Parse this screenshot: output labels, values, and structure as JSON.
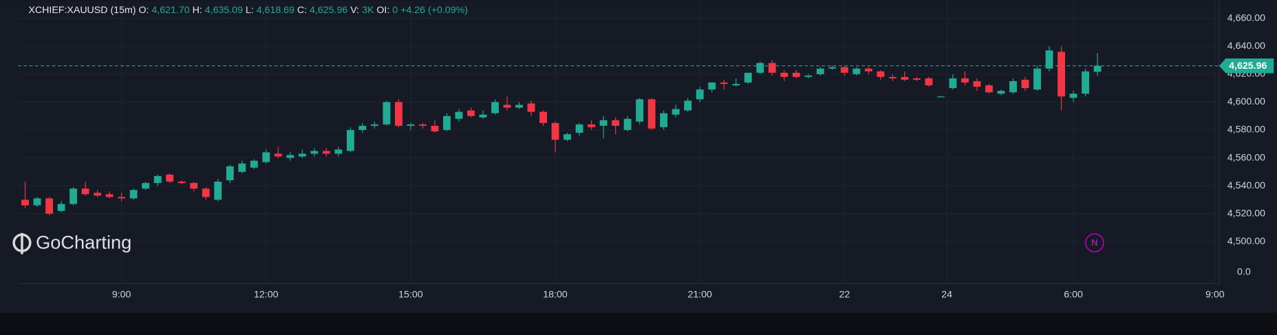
{
  "chart_data": {
    "type": "candlestick",
    "title": "XCHIEF:XAUUSD (15m)",
    "stats": [
      {
        "label": "O:",
        "value": "4,621.70"
      },
      {
        "label": "H:",
        "value": "4,635.09"
      },
      {
        "label": "L:",
        "value": "4,618.69"
      },
      {
        "label": "C:",
        "value": "4,625.96"
      },
      {
        "label": "V:",
        "value": "3K"
      },
      {
        "label": "OI:",
        "value": "0"
      }
    ],
    "change": "+4.26",
    "change_percent": "(+0.09%)",
    "up_color": "#22ab94",
    "down_color": "#f23645",
    "open": [
      4530,
      4526,
      4531,
      4522,
      4527,
      4538,
      4535,
      4534,
      4532,
      4531,
      4538,
      4542,
      4548,
      4543,
      4542,
      4538,
      4530,
      4544,
      4550,
      4553,
      4557,
      4563,
      4560,
      4561,
      4563,
      4565,
      4563,
      4565,
      4580,
      4583,
      4584,
      4600,
      4583,
      4584,
      4583,
      4580,
      4588,
      4594,
      4589,
      4592,
      4598,
      4596,
      4599,
      4593,
      4585,
      4573,
      4578,
      4584,
      4583,
      4587,
      4580,
      4586,
      4602,
      4582,
      4591,
      4594,
      4602,
      4609,
      4614,
      4612,
      4614,
      4621,
      4628,
      4621,
      4621,
      4618,
      4620,
      4624,
      4625,
      4620,
      4624,
      4622,
      4618,
      4618,
      4617,
      4617,
      4604,
      4610,
      4617,
      4615,
      4612,
      4606,
      4607,
      4616,
      4609,
      4624,
      4636,
      4603,
      4606,
      4621.7
    ],
    "high": [
      4543,
      4532,
      4532,
      4529,
      4539,
      4543,
      4537,
      4536,
      4535,
      4538,
      4543,
      4548,
      4549,
      4544,
      4543,
      4539,
      4545,
      4555,
      4558,
      4559,
      4566,
      4568,
      4564,
      4566,
      4567,
      4567,
      4568,
      4582,
      4585,
      4586,
      4601,
      4602,
      4585,
      4585,
      4587,
      4592,
      4595,
      4596,
      4594,
      4602,
      4604,
      4600,
      4601,
      4594,
      4586,
      4578,
      4585,
      4587,
      4590,
      4589,
      4590,
      4603,
      4603,
      4594,
      4598,
      4603,
      4611,
      4614,
      4616,
      4617,
      4621,
      4629,
      4630,
      4623,
      4623,
      4620,
      4625,
      4626,
      4626,
      4625,
      4625,
      4623,
      4620,
      4622,
      4618,
      4618,
      4604.5,
      4620,
      4622,
      4617,
      4613,
      4609,
      4617,
      4618,
      4626,
      4640,
      4640,
      4608,
      4624,
      4635.09
    ],
    "low": [
      4524,
      4525,
      4519,
      4521,
      4526,
      4533,
      4532,
      4531,
      4529,
      4530,
      4537,
      4540,
      4542,
      4541,
      4536,
      4530,
      4529,
      4542,
      4549,
      4552,
      4556,
      4560,
      4558,
      4560,
      4561,
      4561,
      4561,
      4564,
      4578,
      4581,
      4583,
      4582,
      4580,
      4581,
      4578,
      4579,
      4586,
      4589,
      4588,
      4591,
      4594,
      4595,
      4590,
      4583,
      4564,
      4572,
      4576,
      4580,
      4574,
      4577,
      4579,
      4584,
      4580,
      4580,
      4589,
      4593,
      4600,
      4607,
      4609,
      4611,
      4613,
      4620,
      4619,
      4615,
      4617,
      4617,
      4619,
      4623,
      4619,
      4619,
      4620,
      4616,
      4615,
      4615,
      4615,
      4611,
      4603.5,
      4609,
      4612,
      4608,
      4606,
      4605,
      4606,
      4608,
      4608,
      4622,
      4594,
      4600,
      4604,
      4618.69
    ],
    "close": [
      4526,
      4531,
      4520,
      4527,
      4538,
      4534,
      4533,
      4532,
      4531,
      4537,
      4542,
      4547,
      4543,
      4542,
      4538,
      4532,
      4543,
      4554,
      4556,
      4558,
      4564,
      4561,
      4562,
      4563,
      4565,
      4563,
      4566,
      4580,
      4583,
      4584,
      4600,
      4583,
      4584,
      4583,
      4579,
      4590,
      4593,
      4590,
      4591,
      4600,
      4596,
      4598,
      4593,
      4585,
      4573,
      4577,
      4584,
      4582,
      4587,
      4583,
      4588,
      4602,
      4581,
      4592,
      4595,
      4601,
      4609,
      4614,
      4613,
      4613,
      4621,
      4628,
      4621,
      4618,
      4618,
      4619,
      4624,
      4625,
      4621,
      4624,
      4622,
      4618,
      4617,
      4616,
      4616,
      4612,
      4604,
      4617,
      4614,
      4611,
      4607,
      4608,
      4615,
      4610,
      4624,
      4637,
      4604,
      4606,
      4622,
      4625.96
    ],
    "xlim": [
      -0.6,
      99.1
    ],
    "xticks": [
      {
        "value": 8,
        "label": "9:00"
      },
      {
        "value": 20,
        "label": "12:00"
      },
      {
        "value": 32,
        "label": "15:00"
      },
      {
        "value": 44,
        "label": "18:00"
      },
      {
        "value": 56,
        "label": "21:00"
      },
      {
        "value": 68,
        "label": "22"
      },
      {
        "value": 76.5,
        "label": "24"
      },
      {
        "value": 87,
        "label": "6:00"
      },
      {
        "value": 98.75,
        "label": "9:00"
      }
    ],
    "ylim": [
      4470,
      4673
    ],
    "yticks": [
      {
        "value": 4500,
        "label": "4,500.00"
      },
      {
        "value": 4520,
        "label": "4,520.00"
      },
      {
        "value": 4540,
        "label": "4,540.00"
      },
      {
        "value": 4560,
        "label": "4,560.00"
      },
      {
        "value": 4580,
        "label": "4,580.00"
      },
      {
        "value": 4600,
        "label": "4,600.00"
      },
      {
        "value": 4620,
        "label": "4,620.00"
      },
      {
        "value": 4640,
        "label": "4,640.00"
      },
      {
        "value": 4660,
        "label": "4,660.00"
      }
    ],
    "grid": true,
    "last_price": {
      "value": 4625.96,
      "label": "4,625.96"
    },
    "volume_label": "0.0",
    "watermark": "GoCharting",
    "marker_label": "N"
  }
}
